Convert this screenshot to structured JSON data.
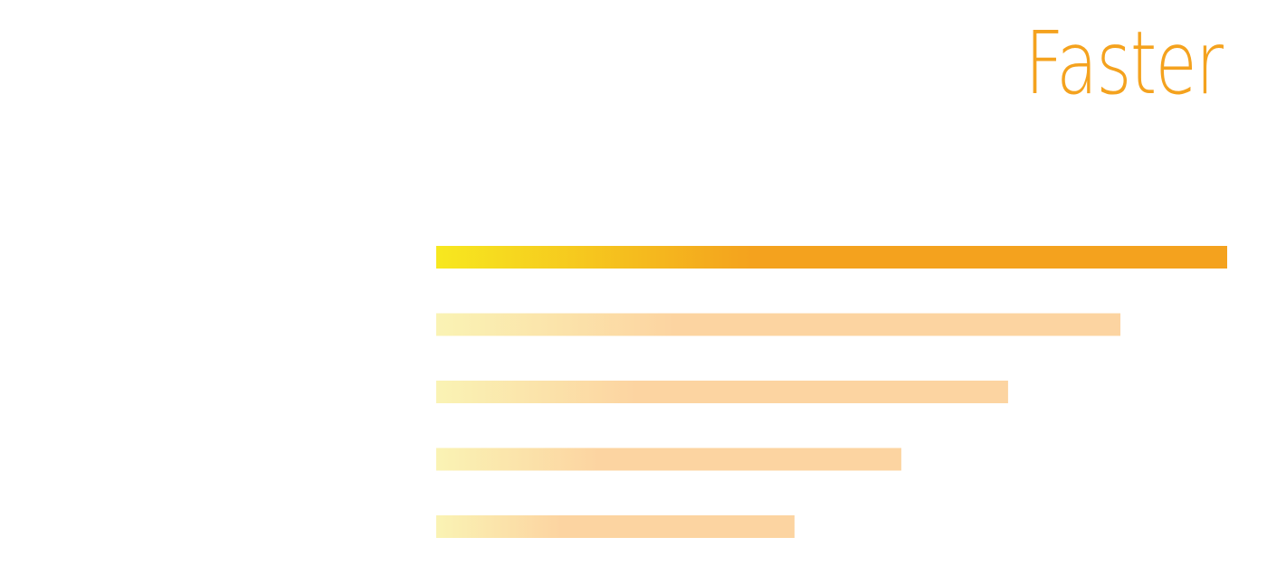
{
  "colors": {
    "title": "#f4a21e",
    "highlight_start": "#f7e81f",
    "highlight_end": "#f4a21e",
    "muted_start": "#faf3b4",
    "muted_end": "#fcd4a1"
  },
  "chart_data": {
    "type": "bar",
    "orientation": "horizontal",
    "title": "Faster",
    "xlabel": "",
    "ylabel": "",
    "grid": false,
    "legend": "none",
    "xlim": [
      0,
      100
    ],
    "categories": [
      "",
      "",
      "",
      "",
      ""
    ],
    "values": [
      100,
      86.5,
      72.3,
      58.8,
      45.3
    ],
    "highlight_index": 0
  }
}
